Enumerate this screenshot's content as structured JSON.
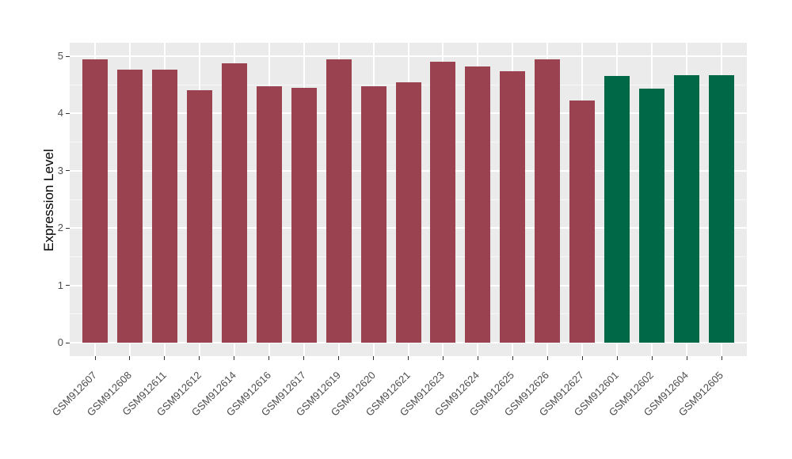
{
  "figure": {
    "background": "#FFFFFF",
    "panel_background": "#EBEBEB",
    "gridline_color": "#FFFFFF",
    "tick_color": "#333333",
    "tick_label_color": "#4D4D4D",
    "axis_title_color": "#000000"
  },
  "chart_data": {
    "type": "bar",
    "title": "",
    "xlabel": "",
    "ylabel": "Expression Level",
    "ylim": [
      0,
      5
    ],
    "yticks": [
      0,
      1,
      2,
      3,
      4,
      5
    ],
    "grid": "major and minor horizontal white gridlines, vertical major at each category",
    "legend_position": "none",
    "x_tick_rotation_deg": 45,
    "categories": [
      "GSM912607",
      "GSM912608",
      "GSM912611",
      "GSM912612",
      "GSM912614",
      "GSM912616",
      "GSM912617",
      "GSM912619",
      "GSM912620",
      "GSM912621",
      "GSM912623",
      "GSM912624",
      "GSM912625",
      "GSM912626",
      "GSM912627",
      "GSM912601",
      "GSM912602",
      "GSM912604",
      "GSM912605"
    ],
    "values": [
      4.95,
      4.77,
      4.77,
      4.4,
      4.87,
      4.48,
      4.45,
      4.95,
      4.48,
      4.55,
      4.9,
      4.82,
      4.74,
      4.94,
      4.22,
      4.65,
      4.44,
      4.67,
      4.67
    ],
    "bar_colors": [
      "#9A4250",
      "#9A4250",
      "#9A4250",
      "#9A4250",
      "#9A4250",
      "#9A4250",
      "#9A4250",
      "#9A4250",
      "#9A4250",
      "#9A4250",
      "#9A4250",
      "#9A4250",
      "#9A4250",
      "#9A4250",
      "#9A4250",
      "#006747",
      "#006747",
      "#006747",
      "#006747"
    ],
    "color_palette": {
      "maroon": "#9A4250",
      "green": "#006747"
    }
  }
}
